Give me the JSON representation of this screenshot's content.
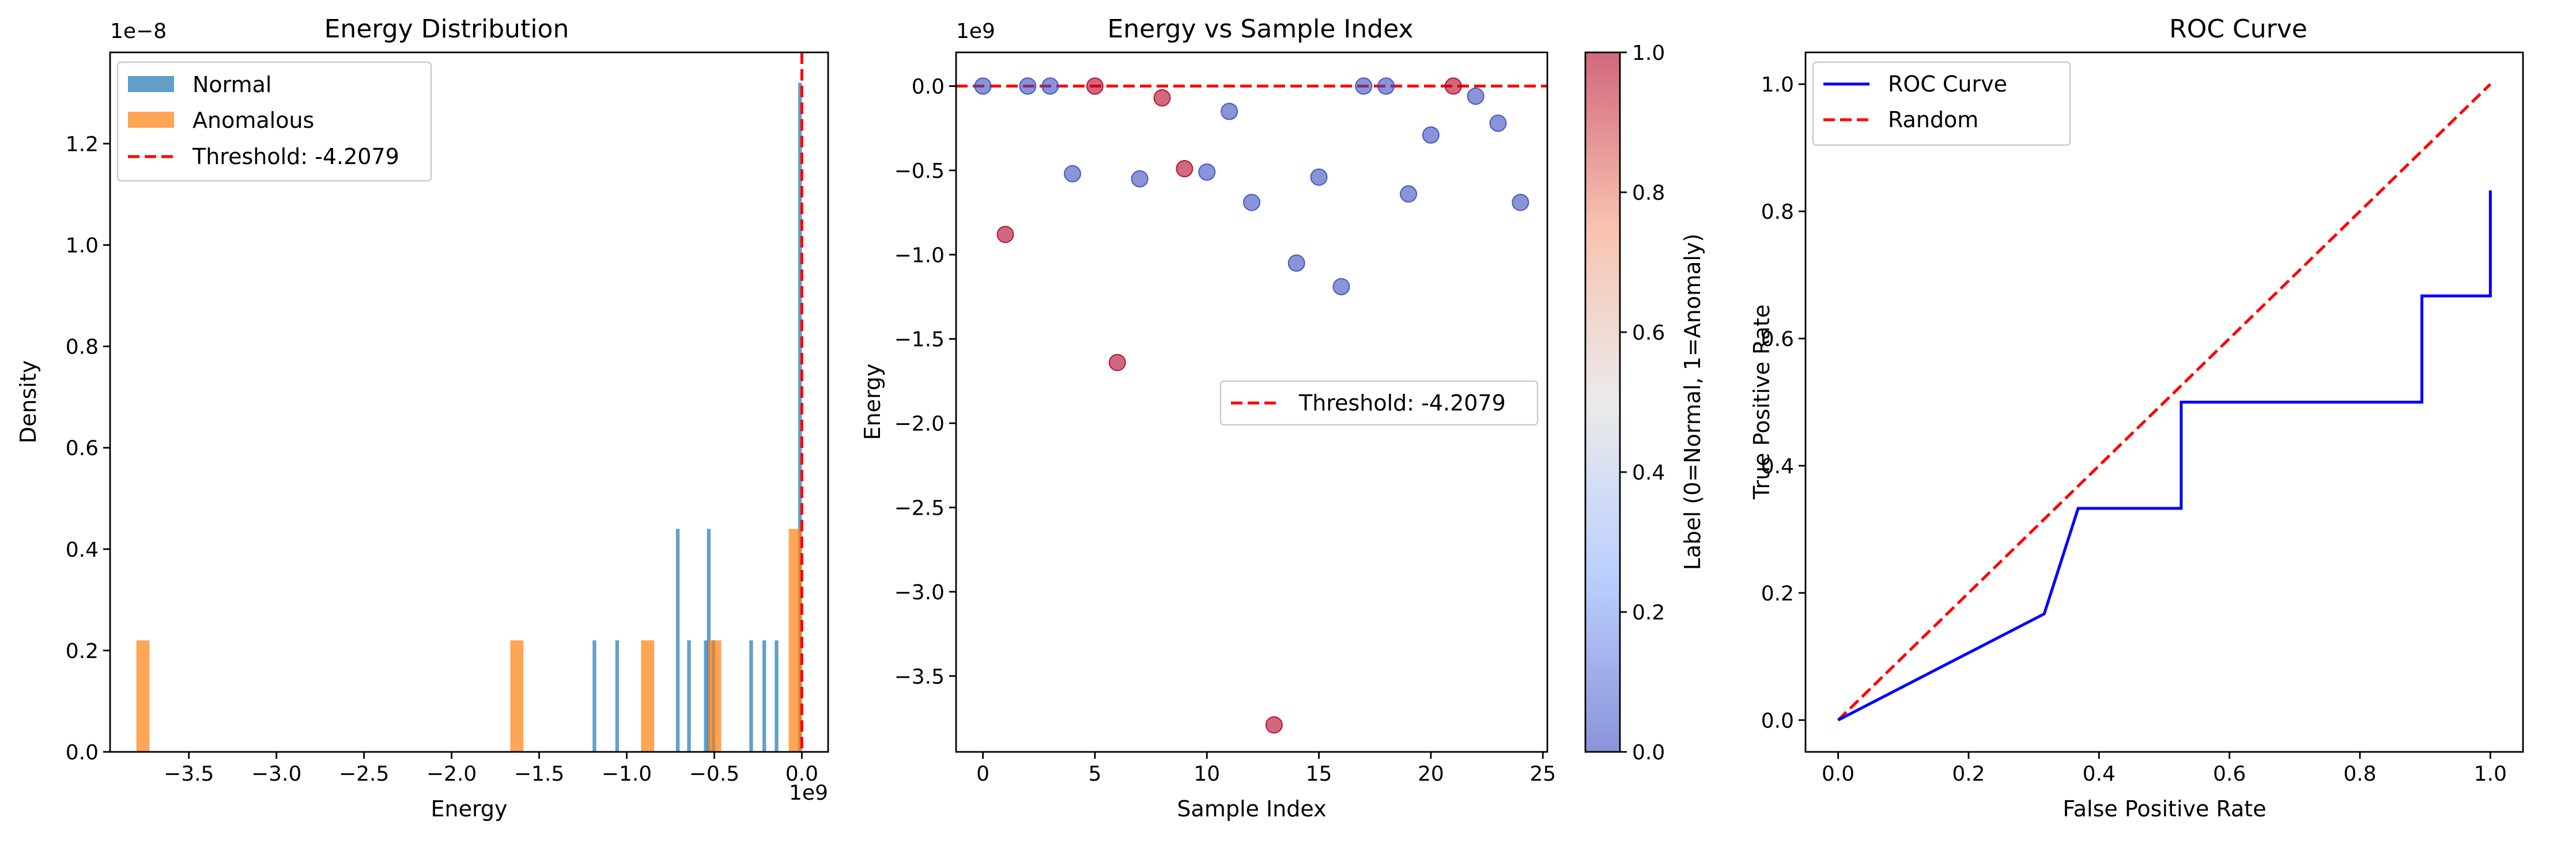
{
  "chart_data": [
    {
      "type": "bar",
      "title": "Energy Distribution",
      "xlabel": "Energy",
      "ylabel": "Density",
      "x_offset_label": "1e9",
      "y_offset_label": "1e−8",
      "xlim": [
        -3.95,
        0.15
      ],
      "ylim": [
        0,
        1.38
      ],
      "xticks": [
        -3.5,
        -3.0,
        -2.5,
        -2.0,
        -1.5,
        -1.0,
        -0.5,
        0.0
      ],
      "xtick_labels": [
        "−3.5",
        "−3.0",
        "−2.5",
        "−2.0",
        "−1.5",
        "−1.0",
        "−0.5",
        "0.0"
      ],
      "yticks": [
        0,
        0.2,
        0.4,
        0.6,
        0.8,
        1.0,
        1.2
      ],
      "ytick_labels": [
        "0.0",
        "0.2",
        "0.4",
        "0.6",
        "0.8",
        "1.0",
        "1.2"
      ],
      "series": [
        {
          "name": "Normal",
          "color": "#1f77b4",
          "bars": [
            {
              "x0": -1.195,
              "x1": -1.174,
              "y": 0.22
            },
            {
              "x0": -1.065,
              "x1": -1.044,
              "y": 0.22
            },
            {
              "x0": -0.719,
              "x1": -0.698,
              "y": 0.44
            },
            {
              "x0": -0.655,
              "x1": -0.634,
              "y": 0.22
            },
            {
              "x0": -0.559,
              "x1": -0.538,
              "y": 0.22
            },
            {
              "x0": -0.542,
              "x1": -0.521,
              "y": 0.44
            },
            {
              "x0": -0.515,
              "x1": -0.494,
              "y": 0.22
            },
            {
              "x0": -0.3,
              "x1": -0.279,
              "y": 0.22
            },
            {
              "x0": -0.225,
              "x1": -0.204,
              "y": 0.22
            },
            {
              "x0": -0.155,
              "x1": -0.134,
              "y": 0.22
            },
            {
              "x0": -0.021,
              "x1": 0.0,
              "y": 1.32
            }
          ]
        },
        {
          "name": "Anomalous",
          "color": "#ff7f0e",
          "bars": [
            {
              "x0": -3.8,
              "x1": -3.725,
              "y": 0.22
            },
            {
              "x0": -1.665,
              "x1": -1.59,
              "y": 0.22
            },
            {
              "x0": -0.918,
              "x1": -0.843,
              "y": 0.22
            },
            {
              "x0": -0.535,
              "x1": -0.46,
              "y": 0.22
            },
            {
              "x0": -0.075,
              "x1": 0.0,
              "y": 0.44
            }
          ]
        }
      ],
      "threshold": {
        "name": "Threshold: -4.2079",
        "x": -4.2079e-09,
        "color": "#ff0000"
      },
      "legend_position": "upper-left"
    },
    {
      "type": "scatter",
      "title": "Energy vs Sample Index",
      "xlabel": "Sample Index",
      "ylabel": "Energy",
      "y_offset_label": "1e9",
      "xlim": [
        -1.2,
        25.2
      ],
      "ylim": [
        -3.95,
        0.2
      ],
      "xticks": [
        0,
        5,
        10,
        15,
        20,
        25
      ],
      "xtick_labels": [
        "0",
        "5",
        "10",
        "15",
        "20",
        "25"
      ],
      "yticks": [
        -3.5,
        -3.0,
        -2.5,
        -2.0,
        -1.5,
        -1.0,
        -0.5,
        0.0
      ],
      "ytick_labels": [
        "−3.5",
        "−3.0",
        "−2.5",
        "−2.0",
        "−1.5",
        "−1.0",
        "−0.5",
        "0.0"
      ],
      "points": [
        {
          "x": 0,
          "y": 0.0,
          "label": 0
        },
        {
          "x": 1,
          "y": -0.88,
          "label": 1
        },
        {
          "x": 2,
          "y": 0.0,
          "label": 0
        },
        {
          "x": 3,
          "y": 0.0,
          "label": 0
        },
        {
          "x": 4,
          "y": -0.52,
          "label": 0
        },
        {
          "x": 5,
          "y": 0.0,
          "label": 1
        },
        {
          "x": 6,
          "y": -1.64,
          "label": 1
        },
        {
          "x": 7,
          "y": -0.55,
          "label": 0
        },
        {
          "x": 8,
          "y": -0.07,
          "label": 1
        },
        {
          "x": 9,
          "y": -0.49,
          "label": 1
        },
        {
          "x": 10,
          "y": -0.51,
          "label": 0
        },
        {
          "x": 11,
          "y": -0.15,
          "label": 0
        },
        {
          "x": 12,
          "y": -0.69,
          "label": 0
        },
        {
          "x": 13,
          "y": -3.79,
          "label": 1
        },
        {
          "x": 14,
          "y": -1.05,
          "label": 0
        },
        {
          "x": 15,
          "y": -0.54,
          "label": 0
        },
        {
          "x": 16,
          "y": -1.19,
          "label": 0
        },
        {
          "x": 17,
          "y": 0.0,
          "label": 0
        },
        {
          "x": 18,
          "y": 0.0,
          "label": 0
        },
        {
          "x": 19,
          "y": -0.64,
          "label": 0
        },
        {
          "x": 20,
          "y": -0.29,
          "label": 0
        },
        {
          "x": 21,
          "y": 0.0,
          "label": 1
        },
        {
          "x": 22,
          "y": -0.06,
          "label": 0
        },
        {
          "x": 23,
          "y": -0.22,
          "label": 0
        },
        {
          "x": 24,
          "y": -0.69,
          "label": 0
        }
      ],
      "threshold": {
        "name": "Threshold: -4.2079",
        "y": -4.2079e-09,
        "color": "#ff0000"
      },
      "colorbar": {
        "label": "Label (0=Normal, 1=Anomaly)",
        "min": 0,
        "max": 1,
        "ticks": [
          0,
          0.2,
          0.4,
          0.6,
          0.8,
          1.0
        ],
        "tick_labels": [
          "0.0",
          "0.2",
          "0.4",
          "0.6",
          "0.8",
          "1.0"
        ],
        "colormap": "coolwarm",
        "low_color": "#3b4cc0",
        "high_color": "#b40426"
      },
      "legend_position": "center-right"
    },
    {
      "type": "line",
      "title": "ROC Curve",
      "xlabel": "False Positive Rate",
      "ylabel": "True Positive Rate",
      "xlim": [
        -0.05,
        1.05
      ],
      "ylim": [
        -0.05,
        1.05
      ],
      "xticks": [
        0,
        0.2,
        0.4,
        0.6,
        0.8,
        1.0
      ],
      "xtick_labels": [
        "0.0",
        "0.2",
        "0.4",
        "0.6",
        "0.8",
        "1.0"
      ],
      "yticks": [
        0,
        0.2,
        0.4,
        0.6,
        0.8,
        1.0
      ],
      "ytick_labels": [
        "0.0",
        "0.2",
        "0.4",
        "0.6",
        "0.8",
        "1.0"
      ],
      "series": [
        {
          "name": "ROC Curve",
          "color": "#0000ff",
          "dash": "solid",
          "x": [
            0.0,
            0.316,
            0.368,
            0.368,
            0.526,
            0.526,
            0.895,
            0.895,
            1.0,
            1.0
          ],
          "y": [
            0.0,
            0.167,
            0.333,
            0.333,
            0.333,
            0.5,
            0.5,
            0.667,
            0.667,
            0.833
          ]
        },
        {
          "name": "Random",
          "color": "#ff0000",
          "dash": "dashed",
          "x": [
            0,
            1
          ],
          "y": [
            0,
            1
          ]
        }
      ],
      "legend_position": "upper-left"
    }
  ]
}
